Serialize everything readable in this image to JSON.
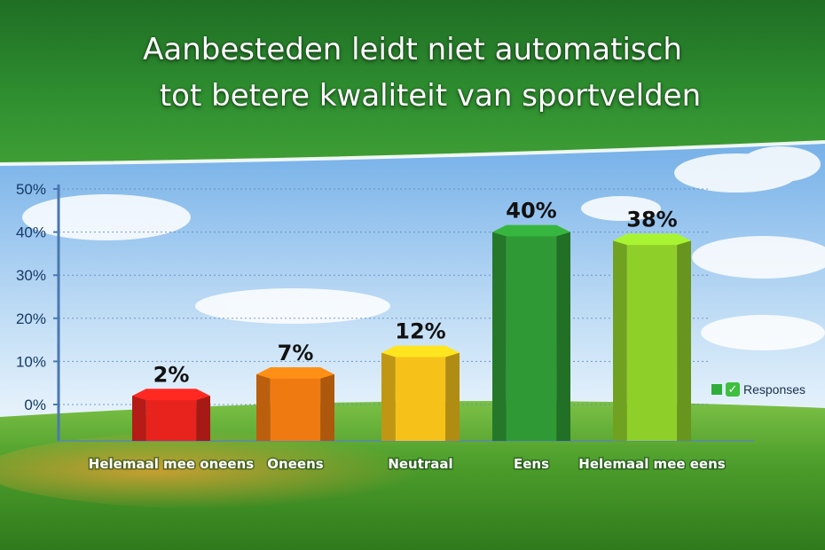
{
  "title": {
    "line1": "Aanbesteden leidt niet automatisch",
    "line2": "tot betere kwaliteit van sportvelden"
  },
  "legend": {
    "label": "Responses"
  },
  "colors": {
    "banner": "#2e8b2e",
    "grass": "#4fa12e",
    "axis": "#4a78b0",
    "bars": [
      "#e8231d",
      "#f07a12",
      "#f6c21a",
      "#2f9a35",
      "#8fcf2a"
    ]
  },
  "chart_data": {
    "type": "bar",
    "categories": [
      "Helemaal mee oneens",
      "Oneens",
      "Neutraal",
      "Eens",
      "Helemaal mee eens"
    ],
    "values": [
      2,
      7,
      12,
      40,
      38
    ],
    "value_labels": [
      "2%",
      "7%",
      "12%",
      "40%",
      "38%"
    ],
    "series": [
      {
        "name": "Responses",
        "values": [
          2,
          7,
          12,
          40,
          38
        ]
      }
    ],
    "yticks": [
      "0%",
      "10%",
      "20%",
      "30%",
      "40%",
      "50%"
    ],
    "ylim": [
      0,
      50
    ],
    "grid": true,
    "legend_position": "right"
  }
}
